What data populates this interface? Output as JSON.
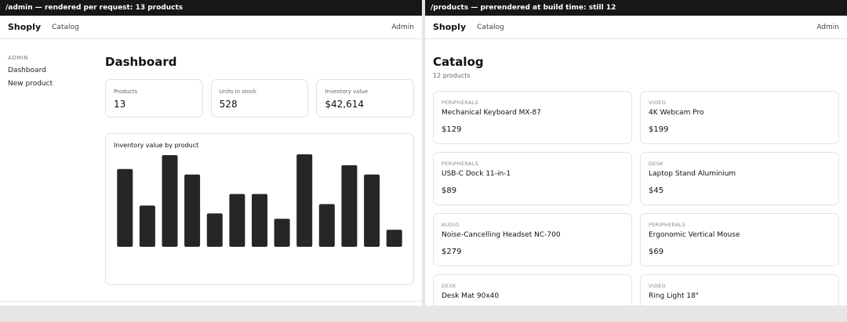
{
  "left": {
    "caption": "/admin — rendered per request: 13 products",
    "nav": {
      "brand": "Shoply",
      "catalog": "Catalog",
      "admin": "Admin"
    },
    "sidebar": {
      "heading": "ADMIN",
      "items": [
        "Dashboard",
        "New product"
      ]
    },
    "title": "Dashboard",
    "stats": [
      {
        "label": "Products",
        "value": "13"
      },
      {
        "label": "Units in stock",
        "value": "528"
      },
      {
        "label": "Inventory value",
        "value": "$42,614"
      }
    ],
    "chart_title": "Inventory value by product"
  },
  "chart_data": {
    "type": "bar",
    "title": "Inventory value by product",
    "values": [
      100,
      53,
      118,
      93,
      43,
      68,
      68,
      36,
      119,
      55,
      105,
      93,
      22
    ],
    "bar_color": "#262626",
    "grid": false
  },
  "right": {
    "caption": "/products — prerendered at build time: still 12",
    "nav": {
      "brand": "Shoply",
      "catalog": "Catalog",
      "admin": "Admin"
    },
    "title": "Catalog",
    "subtitle": "12 products",
    "products": [
      {
        "category": "PERIPHERALS",
        "name": "Mechanical Keyboard MX-87",
        "price": "$129"
      },
      {
        "category": "VIDEO",
        "name": "4K Webcam Pro",
        "price": "$199"
      },
      {
        "category": "PERIPHERALS",
        "name": "USB-C Dock 11-in-1",
        "price": "$89"
      },
      {
        "category": "DESK",
        "name": "Laptop Stand Aluminium",
        "price": "$45"
      },
      {
        "category": "AUDIO",
        "name": "Noise-Cancelling Headset NC-700",
        "price": "$279"
      },
      {
        "category": "PERIPHERALS",
        "name": "Ergonomic Vertical Mouse",
        "price": "$69"
      },
      {
        "category": "DESK",
        "name": "Desk Mat 90x40",
        "price": ""
      },
      {
        "category": "VIDEO",
        "name": "Ring Light 18\"",
        "price": ""
      }
    ]
  }
}
